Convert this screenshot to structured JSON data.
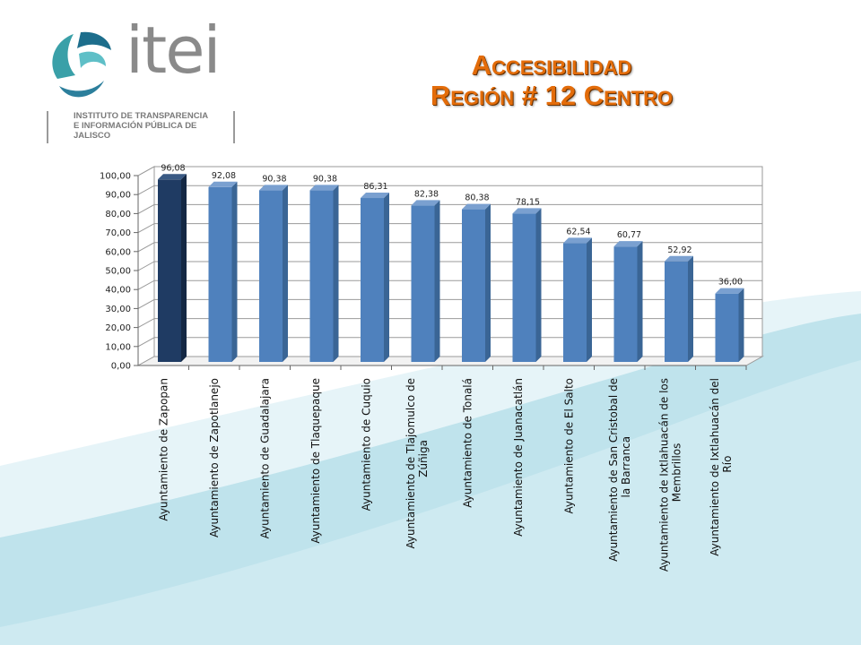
{
  "logo": {
    "wordmark": "itei",
    "subtitle_line1": "INSTITUTO DE TRANSPARENCIA",
    "subtitle_line2": "E INFORMACIÓN PÚBLICA DE JALISCO"
  },
  "title": {
    "line1": "Accesibilidad",
    "line2": "Región # 12 Centro"
  },
  "colors": {
    "title": "#e36c0a",
    "bar": "#4f81bd",
    "bar_highlight": "#1f3b63",
    "background_wave": "#bfe3ec"
  },
  "chart_data": {
    "type": "bar",
    "title": "",
    "xlabel": "",
    "ylabel": "",
    "ylim": [
      0,
      100
    ],
    "yticks": [
      "0,00",
      "10,00",
      "20,00",
      "30,00",
      "40,00",
      "50,00",
      "60,00",
      "70,00",
      "80,00",
      "90,00",
      "100,00"
    ],
    "grid": true,
    "legend": "none",
    "categories": [
      [
        "Ayuntamiento de Zapopan"
      ],
      [
        "Ayuntamiento de Zapotlanejo"
      ],
      [
        "Ayuntamiento de Guadalajara"
      ],
      [
        "Ayuntamiento de Tlaquepaque"
      ],
      [
        "Ayuntamiento de Cuquio"
      ],
      [
        "Ayuntamiento de Tlajomulco de",
        "Zúñiga"
      ],
      [
        "Ayuntamiento de Tonalá"
      ],
      [
        "Ayuntamiento de Juanacatlán"
      ],
      [
        "Ayuntamiento de El Salto"
      ],
      [
        "Ayuntamiento de San Cristobal de",
        "la Barranca"
      ],
      [
        "Ayuntamiento de Ixtlahuacán de los",
        "Membrillos"
      ],
      [
        "Ayuntamiento de Ixtlahuacán del",
        "Río"
      ]
    ],
    "values": [
      96.08,
      92.08,
      90.38,
      90.38,
      86.31,
      82.38,
      80.38,
      78.15,
      62.54,
      60.77,
      52.92,
      36.0
    ],
    "value_labels": [
      "96,08",
      "92,08",
      "90,38",
      "90,38",
      "86,31",
      "82,38",
      "80,38",
      "78,15",
      "62,54",
      "60,77",
      "52,92",
      "36,00"
    ],
    "highlight_index": 0
  }
}
